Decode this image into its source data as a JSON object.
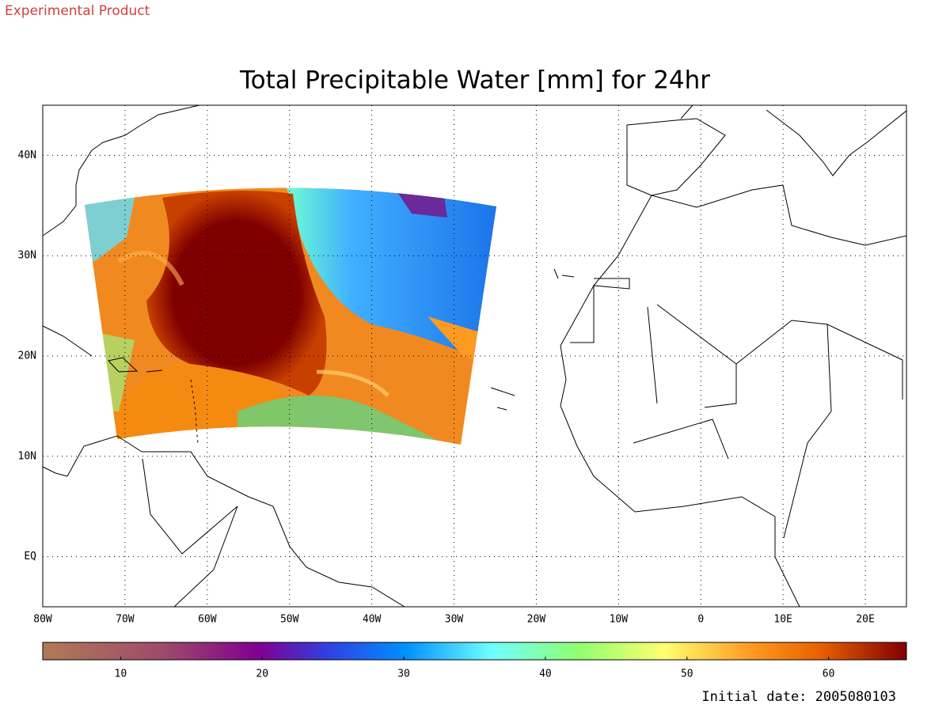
{
  "header": "Experimental Product",
  "chart_data": {
    "type": "map",
    "title": "Total Precipitable Water [mm] for 24hr",
    "xlim": [
      -80,
      25
    ],
    "xticks": [
      {
        "value": -80,
        "label": "80W"
      },
      {
        "value": -70,
        "label": "70W"
      },
      {
        "value": -60,
        "label": "60W"
      },
      {
        "value": -50,
        "label": "50W"
      },
      {
        "value": -40,
        "label": "40W"
      },
      {
        "value": -30,
        "label": "30W"
      },
      {
        "value": -20,
        "label": "20W"
      },
      {
        "value": -10,
        "label": "10W"
      },
      0,
      {
        "value": 10,
        "label": "10E"
      },
      {
        "value": 20,
        "label": "20E"
      }
    ],
    "ylim": [
      -5,
      45
    ],
    "yticks": [
      {
        "value": 0,
        "label": "EQ"
      },
      {
        "value": 10,
        "label": "10N"
      },
      {
        "value": 20,
        "label": "20N"
      },
      {
        "value": 30,
        "label": "30N"
      },
      {
        "value": 40,
        "label": "40N"
      }
    ],
    "grid": true,
    "colorbar_lim": [
      4.5,
      65.5
    ],
    "colorbar_ticks": [
      10,
      20,
      30,
      40,
      50,
      60
    ],
    "footer": "Initial date: 2005080103"
  }
}
